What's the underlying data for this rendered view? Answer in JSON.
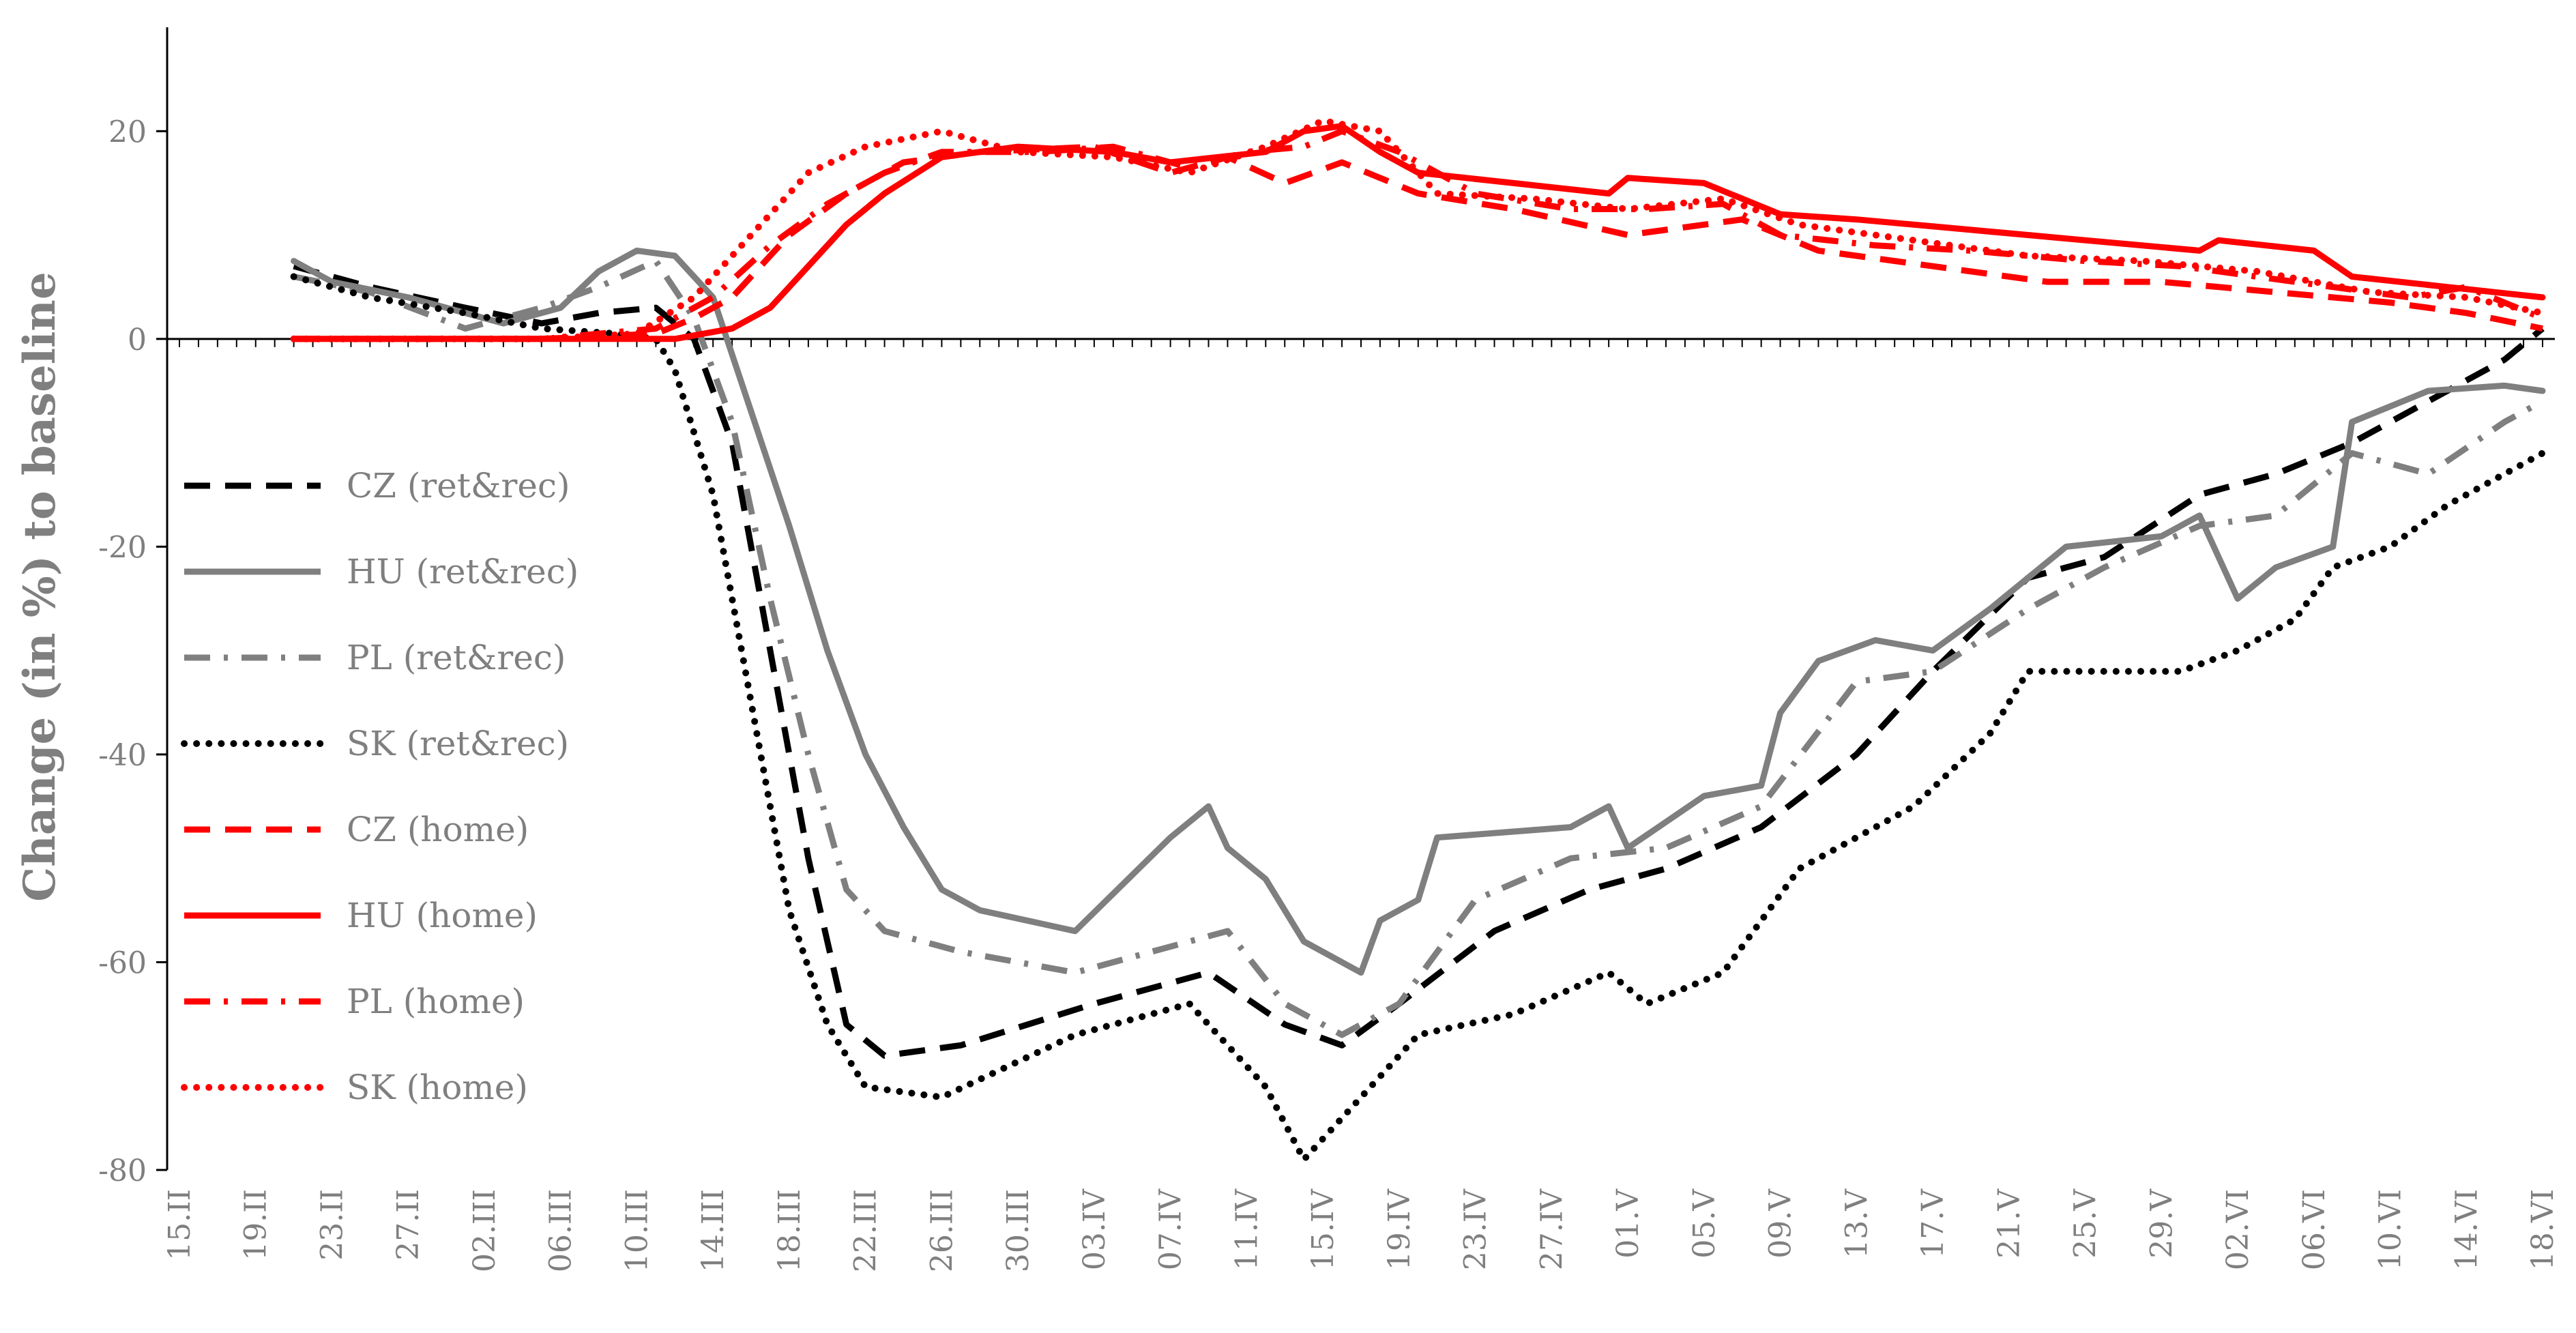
{
  "chart_data": {
    "type": "line",
    "ylabel": "Change (in %) to baseline",
    "ylim": [
      -80,
      30
    ],
    "yticks": [
      20,
      0,
      -20,
      -40,
      -60,
      -80
    ],
    "x_start": "2020-02-15",
    "x_end": "2020-06-18",
    "x_ticks": [
      "15.II",
      "19.II",
      "23.II",
      "27.II",
      "02.III",
      "06.III",
      "10.III",
      "14.III",
      "18.III",
      "22.III",
      "26.III",
      "30.III",
      "03.IV",
      "07.IV",
      "11.IV",
      "15.IV",
      "19.IV",
      "23.IV",
      "27.IV",
      "01.V",
      "05.V",
      "09.V",
      "13.V",
      "17.V",
      "21.V",
      "25.V",
      "29.V",
      "02.VI",
      "06.VI",
      "10.VI",
      "14.VI",
      "18.VI"
    ],
    "x_tick_dates": [
      "2020-02-15",
      "2020-02-19",
      "2020-02-23",
      "2020-02-27",
      "2020-03-02",
      "2020-03-06",
      "2020-03-10",
      "2020-03-14",
      "2020-03-18",
      "2020-03-22",
      "2020-03-26",
      "2020-03-30",
      "2020-04-03",
      "2020-04-07",
      "2020-04-11",
      "2020-04-15",
      "2020-04-19",
      "2020-04-23",
      "2020-04-27",
      "2020-05-01",
      "2020-05-05",
      "2020-05-09",
      "2020-05-13",
      "2020-05-17",
      "2020-05-21",
      "2020-05-25",
      "2020-05-29",
      "2020-06-02",
      "2020-06-06",
      "2020-06-10",
      "2020-06-14",
      "2020-06-18"
    ],
    "legend_position": "left",
    "series": [
      {
        "name": "CZ (ret&rec)",
        "color": "#000000",
        "style": "dash",
        "points": [
          [
            "2020-02-21",
            7
          ],
          [
            "2020-02-25",
            5
          ],
          [
            "2020-03-01",
            3
          ],
          [
            "2020-03-05",
            1.5
          ],
          [
            "2020-03-08",
            2.5
          ],
          [
            "2020-03-11",
            3
          ],
          [
            "2020-03-13",
            0
          ],
          [
            "2020-03-15",
            -10
          ],
          [
            "2020-03-17",
            -30
          ],
          [
            "2020-03-19",
            -50
          ],
          [
            "2020-03-21",
            -66
          ],
          [
            "2020-03-23",
            -69
          ],
          [
            "2020-03-27",
            -68
          ],
          [
            "2020-04-03",
            -64
          ],
          [
            "2020-04-09",
            -61
          ],
          [
            "2020-04-13",
            -66
          ],
          [
            "2020-04-16",
            -68
          ],
          [
            "2020-04-19",
            -64
          ],
          [
            "2020-04-24",
            -57
          ],
          [
            "2020-04-29",
            -53
          ],
          [
            "2020-05-03",
            -51
          ],
          [
            "2020-05-08",
            -47
          ],
          [
            "2020-05-13",
            -40
          ],
          [
            "2020-05-17",
            -32
          ],
          [
            "2020-05-22",
            -23
          ],
          [
            "2020-05-26",
            -21
          ],
          [
            "2020-05-31",
            -15
          ],
          [
            "2020-06-04",
            -13
          ],
          [
            "2020-06-08",
            -10
          ],
          [
            "2020-06-12",
            -6
          ],
          [
            "2020-06-16",
            -2
          ],
          [
            "2020-06-18",
            1
          ]
        ]
      },
      {
        "name": "HU (ret&rec)",
        "color": "#7f7f7f",
        "style": "solid",
        "points": [
          [
            "2020-02-21",
            7.5
          ],
          [
            "2020-02-23",
            5.5
          ],
          [
            "2020-02-27",
            4
          ],
          [
            "2020-03-03",
            1.5
          ],
          [
            "2020-03-06",
            3
          ],
          [
            "2020-03-08",
            6.5
          ],
          [
            "2020-03-10",
            8.5
          ],
          [
            "2020-03-12",
            8
          ],
          [
            "2020-03-14",
            4
          ],
          [
            "2020-03-16",
            -7
          ],
          [
            "2020-03-18",
            -18
          ],
          [
            "2020-03-20",
            -30
          ],
          [
            "2020-03-22",
            -40
          ],
          [
            "2020-03-24",
            -47
          ],
          [
            "2020-03-26",
            -53
          ],
          [
            "2020-03-28",
            -55
          ],
          [
            "2020-04-02",
            -57
          ],
          [
            "2020-04-07",
            -48
          ],
          [
            "2020-04-09",
            -45
          ],
          [
            "2020-04-10",
            -49
          ],
          [
            "2020-04-12",
            -52
          ],
          [
            "2020-04-14",
            -58
          ],
          [
            "2020-04-17",
            -61
          ],
          [
            "2020-04-18",
            -56
          ],
          [
            "2020-04-20",
            -54
          ],
          [
            "2020-04-21",
            -48
          ],
          [
            "2020-04-28",
            -47
          ],
          [
            "2020-04-30",
            -45
          ],
          [
            "2020-05-01",
            -49
          ],
          [
            "2020-05-05",
            -44
          ],
          [
            "2020-05-08",
            -43
          ],
          [
            "2020-05-09",
            -36
          ],
          [
            "2020-05-11",
            -31
          ],
          [
            "2020-05-14",
            -29
          ],
          [
            "2020-05-17",
            -30
          ],
          [
            "2020-05-20",
            -26
          ],
          [
            "2020-05-24",
            -20
          ],
          [
            "2020-05-29",
            -19
          ],
          [
            "2020-05-31",
            -17
          ],
          [
            "2020-06-02",
            -25
          ],
          [
            "2020-06-04",
            -22
          ],
          [
            "2020-06-07",
            -20
          ],
          [
            "2020-06-08",
            -8
          ],
          [
            "2020-06-12",
            -5
          ],
          [
            "2020-06-16",
            -4.5
          ],
          [
            "2020-06-18",
            -5
          ]
        ]
      },
      {
        "name": "PL (ret&rec)",
        "color": "#7f7f7f",
        "style": "dashdot",
        "points": [
          [
            "2020-02-21",
            6
          ],
          [
            "2020-02-25",
            4.5
          ],
          [
            "2020-03-01",
            1
          ],
          [
            "2020-03-05",
            3
          ],
          [
            "2020-03-08",
            5
          ],
          [
            "2020-03-11",
            7.5
          ],
          [
            "2020-03-13",
            2
          ],
          [
            "2020-03-15",
            -8
          ],
          [
            "2020-03-17",
            -25
          ],
          [
            "2020-03-19",
            -40
          ],
          [
            "2020-03-21",
            -53
          ],
          [
            "2020-03-23",
            -57
          ],
          [
            "2020-03-27",
            -59
          ],
          [
            "2020-04-02",
            -61
          ],
          [
            "2020-04-06",
            -59
          ],
          [
            "2020-04-10",
            -57
          ],
          [
            "2020-04-13",
            -64
          ],
          [
            "2020-04-16",
            -67
          ],
          [
            "2020-04-19",
            -64
          ],
          [
            "2020-04-23",
            -54
          ],
          [
            "2020-04-28",
            -50
          ],
          [
            "2020-05-03",
            -49
          ],
          [
            "2020-05-08",
            -45
          ],
          [
            "2020-05-13",
            -33
          ],
          [
            "2020-05-17",
            -32
          ],
          [
            "2020-05-22",
            -26
          ],
          [
            "2020-05-26",
            -22
          ],
          [
            "2020-05-31",
            -18
          ],
          [
            "2020-06-04",
            -17
          ],
          [
            "2020-06-08",
            -11
          ],
          [
            "2020-06-12",
            -13
          ],
          [
            "2020-06-16",
            -8
          ],
          [
            "2020-06-18",
            -6
          ]
        ]
      },
      {
        "name": "SK (ret&rec)",
        "color": "#000000",
        "style": "dot",
        "points": [
          [
            "2020-02-21",
            6
          ],
          [
            "2020-02-25",
            4
          ],
          [
            "2020-03-01",
            2.5
          ],
          [
            "2020-03-05",
            1
          ],
          [
            "2020-03-09",
            0.5
          ],
          [
            "2020-03-11",
            0
          ],
          [
            "2020-03-12",
            -3
          ],
          [
            "2020-03-14",
            -15
          ],
          [
            "2020-03-16",
            -35
          ],
          [
            "2020-03-18",
            -55
          ],
          [
            "2020-03-20",
            -66
          ],
          [
            "2020-03-22",
            -72
          ],
          [
            "2020-03-26",
            -73
          ],
          [
            "2020-04-02",
            -67
          ],
          [
            "2020-04-08",
            -64
          ],
          [
            "2020-04-12",
            -72
          ],
          [
            "2020-04-14",
            -79
          ],
          [
            "2020-04-16",
            -75
          ],
          [
            "2020-04-20",
            -67
          ],
          [
            "2020-04-25",
            -65
          ],
          [
            "2020-04-30",
            -61
          ],
          [
            "2020-05-02",
            -64
          ],
          [
            "2020-05-06",
            -61
          ],
          [
            "2020-05-10",
            -51
          ],
          [
            "2020-05-13",
            -48
          ],
          [
            "2020-05-16",
            -45
          ],
          [
            "2020-05-20",
            -38
          ],
          [
            "2020-05-22",
            -32
          ],
          [
            "2020-05-26",
            -32
          ],
          [
            "2020-05-30",
            -32
          ],
          [
            "2020-06-02",
            -30
          ],
          [
            "2020-06-05",
            -27
          ],
          [
            "2020-06-07",
            -22
          ],
          [
            "2020-06-10",
            -20
          ],
          [
            "2020-06-13",
            -16
          ],
          [
            "2020-06-16",
            -13
          ],
          [
            "2020-06-18",
            -11
          ]
        ]
      },
      {
        "name": "CZ (home)",
        "color": "#ff0000",
        "style": "dash",
        "points": [
          [
            "2020-02-21",
            0
          ],
          [
            "2020-03-05",
            0
          ],
          [
            "2020-03-11",
            0.5
          ],
          [
            "2020-03-13",
            2
          ],
          [
            "2020-03-15",
            4
          ],
          [
            "2020-03-18",
            10
          ],
          [
            "2020-03-21",
            14
          ],
          [
            "2020-03-24",
            17
          ],
          [
            "2020-03-28",
            18
          ],
          [
            "2020-04-03",
            18.5
          ],
          [
            "2020-04-07",
            16
          ],
          [
            "2020-04-10",
            17.5
          ],
          [
            "2020-04-13",
            15
          ],
          [
            "2020-04-16",
            17
          ],
          [
            "2020-04-20",
            14
          ],
          [
            "2020-04-25",
            12.5
          ],
          [
            "2020-05-01",
            10
          ],
          [
            "2020-05-07",
            11.5
          ],
          [
            "2020-05-11",
            8.5
          ],
          [
            "2020-05-17",
            7
          ],
          [
            "2020-05-23",
            5.5
          ],
          [
            "2020-05-29",
            5.5
          ],
          [
            "2020-06-04",
            4.5
          ],
          [
            "2020-06-10",
            3.5
          ],
          [
            "2020-06-14",
            2.5
          ],
          [
            "2020-06-18",
            1
          ]
        ]
      },
      {
        "name": "HU (home)",
        "color": "#ff0000",
        "style": "solid",
        "points": [
          [
            "2020-02-21",
            0
          ],
          [
            "2020-03-05",
            0
          ],
          [
            "2020-03-12",
            0
          ],
          [
            "2020-03-15",
            1
          ],
          [
            "2020-03-17",
            3
          ],
          [
            "2020-03-19",
            7
          ],
          [
            "2020-03-21",
            11
          ],
          [
            "2020-03-23",
            14
          ],
          [
            "2020-03-26",
            17.5
          ],
          [
            "2020-03-30",
            18.5
          ],
          [
            "2020-04-04",
            18
          ],
          [
            "2020-04-07",
            17
          ],
          [
            "2020-04-12",
            18
          ],
          [
            "2020-04-14",
            20
          ],
          [
            "2020-04-16",
            20.5
          ],
          [
            "2020-04-18",
            18
          ],
          [
            "2020-04-20",
            16
          ],
          [
            "2020-04-25",
            15
          ],
          [
            "2020-04-30",
            14
          ],
          [
            "2020-05-01",
            15.5
          ],
          [
            "2020-05-05",
            15
          ],
          [
            "2020-05-09",
            12
          ],
          [
            "2020-05-13",
            11.5
          ],
          [
            "2020-05-19",
            10.5
          ],
          [
            "2020-05-25",
            9.5
          ],
          [
            "2020-05-31",
            8.5
          ],
          [
            "2020-06-01",
            9.5
          ],
          [
            "2020-06-06",
            8.5
          ],
          [
            "2020-06-08",
            6
          ],
          [
            "2020-06-13",
            5
          ],
          [
            "2020-06-18",
            4
          ]
        ]
      },
      {
        "name": "PL (home)",
        "color": "#ff0000",
        "style": "dashdot",
        "points": [
          [
            "2020-02-21",
            0
          ],
          [
            "2020-03-05",
            0
          ],
          [
            "2020-03-11",
            1
          ],
          [
            "2020-03-14",
            4
          ],
          [
            "2020-03-17",
            9
          ],
          [
            "2020-03-20",
            13
          ],
          [
            "2020-03-23",
            16
          ],
          [
            "2020-03-26",
            18
          ],
          [
            "2020-03-31",
            18
          ],
          [
            "2020-04-04",
            18.5
          ],
          [
            "2020-04-08",
            16.5
          ],
          [
            "2020-04-11",
            18
          ],
          [
            "2020-04-14",
            18.5
          ],
          [
            "2020-04-16",
            20
          ],
          [
            "2020-04-19",
            18
          ],
          [
            "2020-04-23",
            14
          ],
          [
            "2020-04-28",
            12.5
          ],
          [
            "2020-05-02",
            12.5
          ],
          [
            "2020-05-06",
            13
          ],
          [
            "2020-05-09",
            10
          ],
          [
            "2020-05-14",
            9
          ],
          [
            "2020-05-19",
            8.5
          ],
          [
            "2020-05-25",
            7.5
          ],
          [
            "2020-05-30",
            7
          ],
          [
            "2020-06-05",
            5.5
          ],
          [
            "2020-06-11",
            4
          ],
          [
            "2020-06-14",
            5
          ],
          [
            "2020-06-18",
            2
          ]
        ]
      },
      {
        "name": "SK (home)",
        "color": "#ff0000",
        "style": "dot",
        "points": [
          [
            "2020-02-21",
            0
          ],
          [
            "2020-03-05",
            0
          ],
          [
            "2020-03-10",
            0.5
          ],
          [
            "2020-03-13",
            4
          ],
          [
            "2020-03-16",
            10
          ],
          [
            "2020-03-19",
            16
          ],
          [
            "2020-03-22",
            18.5
          ],
          [
            "2020-03-26",
            20
          ],
          [
            "2020-03-30",
            18
          ],
          [
            "2020-04-04",
            17.5
          ],
          [
            "2020-04-08",
            16
          ],
          [
            "2020-04-12",
            18.5
          ],
          [
            "2020-04-15",
            21
          ],
          [
            "2020-04-18",
            20
          ],
          [
            "2020-04-21",
            14
          ],
          [
            "2020-04-26",
            13.5
          ],
          [
            "2020-05-01",
            12.5
          ],
          [
            "2020-05-06",
            13.5
          ],
          [
            "2020-05-10",
            11
          ],
          [
            "2020-05-16",
            9.5
          ],
          [
            "2020-05-22",
            8
          ],
          [
            "2020-05-28",
            7.5
          ],
          [
            "2020-06-03",
            6.5
          ],
          [
            "2020-06-09",
            4.5
          ],
          [
            "2020-06-14",
            4
          ],
          [
            "2020-06-18",
            2.5
          ]
        ]
      }
    ]
  }
}
